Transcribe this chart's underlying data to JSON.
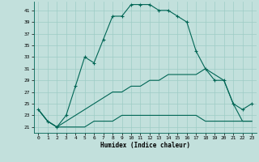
{
  "xlabel": "Humidex (Indice chaleur)",
  "bg_color": "#c2e0dc",
  "grid_color": "#9eccc6",
  "line_color": "#006655",
  "x_ticks": [
    0,
    1,
    2,
    3,
    4,
    5,
    6,
    7,
    8,
    9,
    10,
    11,
    12,
    13,
    14,
    15,
    16,
    17,
    18,
    19,
    20,
    21,
    22,
    23
  ],
  "y_ticks": [
    21,
    23,
    25,
    27,
    29,
    31,
    33,
    35,
    37,
    39,
    41
  ],
  "ylim": [
    20.0,
    42.5
  ],
  "xlim": [
    -0.5,
    23.5
  ],
  "series1": [
    24,
    22,
    21,
    23,
    28,
    33,
    32,
    36,
    40,
    40,
    42,
    42,
    42,
    41,
    41,
    40,
    39,
    34,
    31,
    29,
    29,
    25,
    24,
    25
  ],
  "series2": [
    24,
    22,
    21,
    21,
    21,
    21,
    22,
    22,
    22,
    23,
    23,
    23,
    23,
    23,
    23,
    23,
    23,
    23,
    22,
    22,
    22,
    22,
    22,
    22
  ],
  "series3": [
    24,
    22,
    21,
    22,
    23,
    24,
    25,
    26,
    27,
    27,
    28,
    28,
    29,
    29,
    30,
    30,
    30,
    30,
    31,
    30,
    29,
    25,
    22,
    22
  ]
}
